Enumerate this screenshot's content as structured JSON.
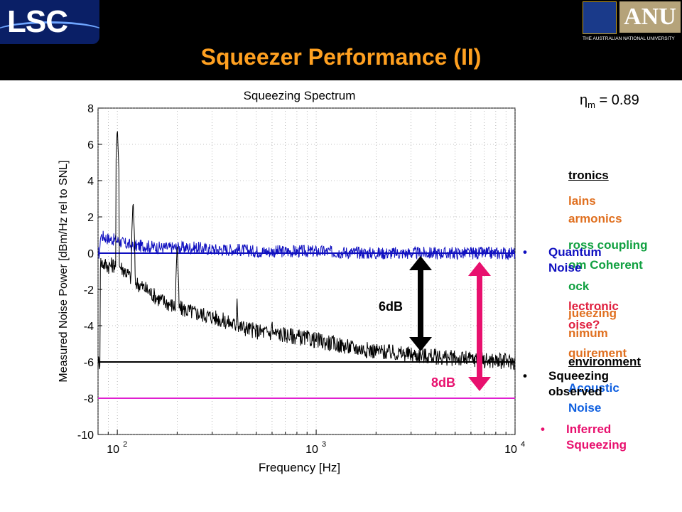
{
  "slide": {
    "title": "Squeezer Performance (II)",
    "logo_left": "LSC",
    "logo_right": "ANU",
    "logo_right_sub": "THE AUSTRALIAN NATIONAL UNIVERSITY",
    "eta_symbol": "η",
    "eta_sub": "m",
    "eta_value": " = 0.89",
    "colors": {
      "title": "#ffa020",
      "quantum": "#1010c0",
      "inferred": "#e8106e",
      "green": "#10a040",
      "orange": "#e07020"
    },
    "bullets_left": {
      "quantum_noise": "Quantum Noise",
      "squeezing_observed": "Squeezing observed"
    },
    "bullets_right": {
      "electronics": "tronics",
      "mains": "lains",
      "harmonics": "armonics",
      "cross_coupling": "ross coupling",
      "from_coherent": "om Coherent",
      "lock": "ock",
      "electronic": "lectronic",
      "noise_q": "oise?",
      "squeezing": "jueezing",
      "minimum": "nimum",
      "requirement": "quirement",
      "environment": "environment",
      "acoustic": "Acoustic",
      "noise": "Noise",
      "inferred_squeezing": "Inferred Squeezing"
    },
    "arrows": {
      "black_label": "6dB",
      "pink_label": "8dB"
    }
  },
  "chart_data": {
    "type": "line",
    "title": "Squeezing Spectrum",
    "xlabel": "Frequency [Hz]",
    "ylabel": "Measured Noise Power [dBm/Hz rel to SNL]",
    "xscale": "log",
    "xlim": [
      80,
      10000
    ],
    "ylim": [
      -10,
      8
    ],
    "yticks": [
      "-10",
      "-8",
      "-6",
      "-4",
      "-2",
      "0",
      "2",
      "4",
      "6",
      "8"
    ],
    "xticks": [
      {
        "base": "10",
        "exp": "2"
      },
      {
        "base": "10",
        "exp": "3"
      },
      {
        "base": "10",
        "exp": "4"
      }
    ],
    "grid": true,
    "reference_lines": [
      {
        "value": 0,
        "color": "#1010c0"
      },
      {
        "value": -6,
        "color": "#000000"
      },
      {
        "value": -8,
        "color": "#e020d0"
      }
    ],
    "series": [
      {
        "color": "#1010c0",
        "x": [
          82,
          90,
          100,
          110,
          120,
          140,
          160,
          200,
          250,
          300,
          400,
          500,
          700,
          1000,
          2000,
          4000,
          7000,
          10000
        ],
        "y": [
          1.0,
          0.8,
          0.7,
          0.5,
          0.4,
          0.4,
          0.3,
          0.3,
          0.3,
          0.2,
          0.2,
          0.1,
          0.1,
          0.1,
          0.0,
          0.0,
          0.0,
          0.0
        ]
      },
      {
        "color": "#000000",
        "x": [
          82,
          90,
          100,
          110,
          120,
          140,
          160,
          200,
          250,
          300,
          400,
          500,
          700,
          1000,
          1500,
          2000,
          3000,
          5000,
          7000,
          10000
        ],
        "y": [
          -0.5,
          -0.7,
          -0.6,
          -1.0,
          -1.5,
          -2.0,
          -2.5,
          -3.0,
          -3.3,
          -3.5,
          -4.0,
          -4.3,
          -4.5,
          -4.8,
          -5.2,
          -5.4,
          -5.6,
          -5.8,
          -5.9,
          -6.0
        ]
      }
    ],
    "peaks": [
      {
        "x": 100,
        "y": 7.0
      },
      {
        "x": 120,
        "y": 3.0
      },
      {
        "x": 200,
        "y": 0.5
      },
      {
        "x": 400,
        "y": -2.5
      },
      {
        "x": 600,
        "y": -3.5
      }
    ]
  }
}
